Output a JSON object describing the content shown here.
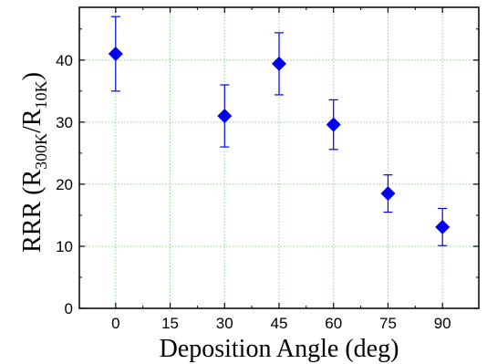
{
  "chart_data": {
    "type": "scatter",
    "xlabel": "Deposition Angle (deg)",
    "ylabel": {
      "prefix": "RRR (R",
      "sub1": "300K",
      "mid": "/R",
      "sub2": "10K",
      "suffix": ")"
    },
    "xlim": [
      -10,
      100
    ],
    "ylim": [
      0,
      48.5
    ],
    "xticks": [
      0,
      15,
      30,
      45,
      60,
      75,
      90
    ],
    "yticks": [
      0,
      10,
      20,
      30,
      40
    ],
    "grid": true,
    "marker": "diamond",
    "colors": {
      "marker": "#0000ee",
      "grid": "#7fdc7f",
      "axis": "#000000"
    },
    "series": [
      {
        "points": [
          {
            "x": 0,
            "y": 41.0,
            "err_low": 35.0,
            "err_high": 47.0
          },
          {
            "x": 30,
            "y": 31.0,
            "err_low": 26.0,
            "err_high": 36.0
          },
          {
            "x": 45,
            "y": 39.4,
            "err_low": 34.4,
            "err_high": 44.4
          },
          {
            "x": 60,
            "y": 29.6,
            "err_low": 25.6,
            "err_high": 33.6
          },
          {
            "x": 75,
            "y": 18.5,
            "err_low": 15.5,
            "err_high": 21.5
          },
          {
            "x": 90,
            "y": 13.1,
            "err_low": 10.1,
            "err_high": 16.1
          }
        ]
      }
    ]
  }
}
